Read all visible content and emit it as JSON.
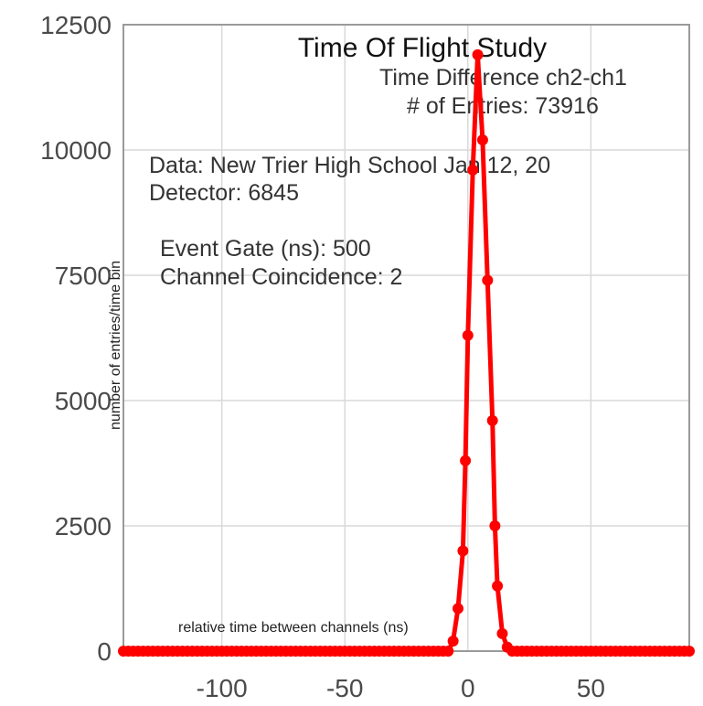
{
  "chart_data": {
    "type": "line",
    "title": "Time Of Flight Study",
    "subtitle": "Time Difference ch2-ch1",
    "entries_text": "# of Entries: 73916",
    "info_lines": [
      "Data: New Trier High School Jan 12, 20",
      "Detector: 6845",
      "Event Gate (ns): 500",
      "Channel Coincidence: 2"
    ],
    "xlabel": "relative time between channels (ns)",
    "ylabel": "number of entries/time bin",
    "xlim": [
      -140,
      90
    ],
    "ylim": [
      0,
      12500
    ],
    "xticks": [
      -100,
      -50,
      0,
      50
    ],
    "xtick_labels": [
      "-100",
      "-50",
      "0",
      "50"
    ],
    "yticks": [
      0,
      2500,
      5000,
      7500,
      10000,
      12500
    ],
    "ytick_labels": [
      "0",
      "2500",
      "5000",
      "7500",
      "10000",
      "12500"
    ],
    "grid": true,
    "series_color": "#ff0000",
    "peak_points": [
      [
        -6,
        200
      ],
      [
        -4,
        850
      ],
      [
        -2,
        2000
      ],
      [
        -1,
        3800
      ],
      [
        0,
        6300
      ],
      [
        2,
        9600
      ],
      [
        4,
        11900
      ],
      [
        6,
        10200
      ],
      [
        8,
        7400
      ],
      [
        10,
        4600
      ],
      [
        11,
        2500
      ],
      [
        12,
        1300
      ],
      [
        14,
        350
      ],
      [
        16,
        80
      ]
    ],
    "baseline": {
      "x_start": -140,
      "x_end": 90,
      "step": 2,
      "value": 0
    }
  }
}
